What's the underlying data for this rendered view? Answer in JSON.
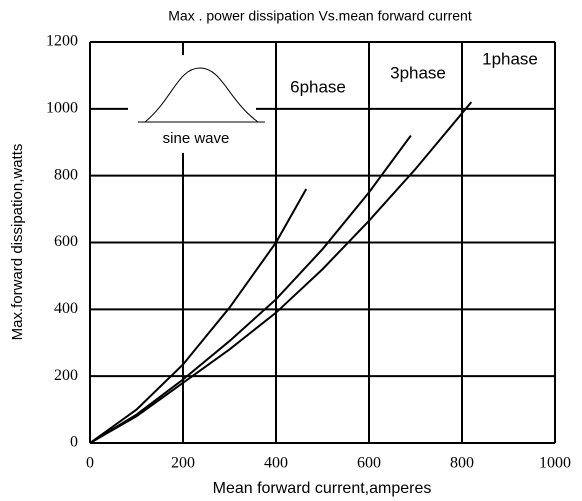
{
  "chart_data": {
    "type": "line",
    "title": "Max . power dissipation Vs.mean forward current",
    "xlabel": "Mean forward current,amperes",
    "ylabel": "Max.forward dissipation,watts",
    "annotations": [
      "sine wave"
    ],
    "series": [
      {
        "name": "6phase",
        "color": "#000000",
        "x": [
          0,
          100,
          200,
          300,
          400,
          465
        ],
        "values": [
          0,
          100,
          235,
          405,
          600,
          760
        ]
      },
      {
        "name": "3phase",
        "color": "#000000",
        "x": [
          0,
          100,
          200,
          300,
          400,
          500,
          600,
          690
        ],
        "values": [
          0,
          85,
          190,
          305,
          430,
          580,
          750,
          920
        ]
      },
      {
        "name": "1phase",
        "color": "#000000",
        "x": [
          0,
          100,
          200,
          300,
          400,
          500,
          600,
          700,
          820
        ],
        "values": [
          0,
          80,
          180,
          280,
          390,
          520,
          665,
          820,
          1020
        ]
      }
    ],
    "xlim": [
      0,
      1000
    ],
    "xticks": [
      0,
      200,
      400,
      600,
      800,
      1000
    ],
    "ylim": [
      0,
      1200
    ],
    "yticks": [
      0,
      200,
      400,
      600,
      800,
      1000,
      1200
    ],
    "grid": true
  }
}
